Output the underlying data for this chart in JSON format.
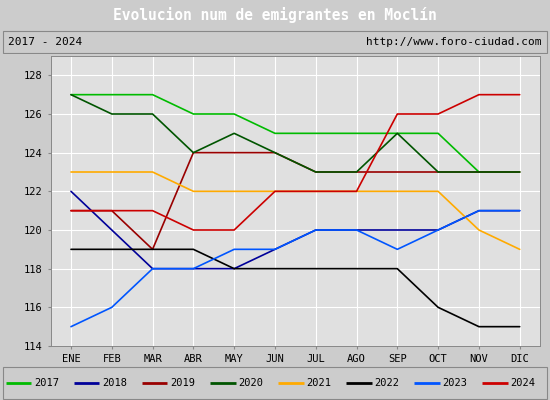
{
  "title": "Evolucion num de emigrantes en Moclín",
  "title_bg": "#4a86c8",
  "subtitle_left": "2017 - 2024",
  "subtitle_right": "http://www.foro-ciudad.com",
  "months": [
    "ENE",
    "FEB",
    "MAR",
    "ABR",
    "MAY",
    "JUN",
    "JUL",
    "AGO",
    "SEP",
    "OCT",
    "NOV",
    "DIC"
  ],
  "ylim": [
    114,
    129
  ],
  "yticks": [
    114,
    116,
    118,
    120,
    122,
    124,
    126,
    128
  ],
  "series": {
    "2017": {
      "color": "#00bb00",
      "values": [
        127,
        127,
        127,
        126,
        126,
        125,
        125,
        125,
        125,
        125,
        123,
        123
      ]
    },
    "2018": {
      "color": "#000099",
      "values": [
        122,
        120,
        118,
        118,
        118,
        119,
        120,
        120,
        120,
        120,
        121,
        121
      ]
    },
    "2019": {
      "color": "#990000",
      "values": [
        121,
        121,
        119,
        124,
        124,
        124,
        123,
        123,
        123,
        123,
        123,
        123
      ]
    },
    "2020": {
      "color": "#005500",
      "values": [
        127,
        126,
        126,
        124,
        125,
        124,
        123,
        123,
        125,
        123,
        123,
        123
      ]
    },
    "2021": {
      "color": "#ffaa00",
      "values": [
        123,
        123,
        123,
        122,
        122,
        122,
        122,
        122,
        122,
        122,
        120,
        119
      ]
    },
    "2022": {
      "color": "#000000",
      "values": [
        119,
        119,
        119,
        119,
        118,
        118,
        118,
        118,
        118,
        116,
        115,
        115
      ]
    },
    "2023": {
      "color": "#0055ff",
      "values": [
        115,
        116,
        118,
        118,
        119,
        119,
        120,
        120,
        119,
        120,
        121,
        121
      ]
    },
    "2024": {
      "color": "#cc0000",
      "values": [
        121,
        121,
        121,
        120,
        120,
        122,
        122,
        122,
        126,
        126,
        127,
        127
      ]
    }
  },
  "bg_color": "#cccccc",
  "plot_bg": "#e0e0e0",
  "grid_color": "#ffffff",
  "legend_bg": "#eeeeee",
  "line_style": "-",
  "line_width": 1.2
}
